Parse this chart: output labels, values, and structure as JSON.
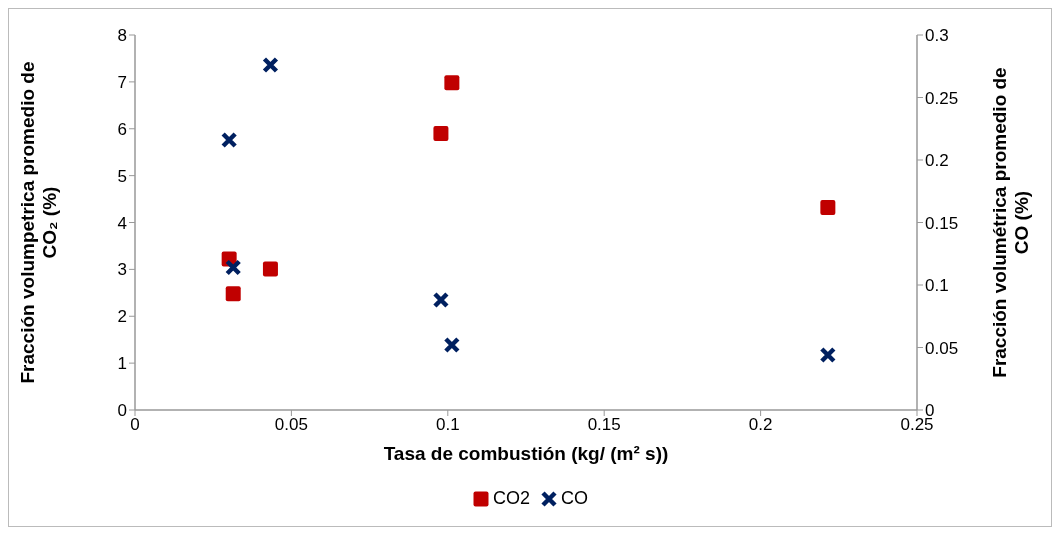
{
  "chart_data": {
    "type": "scatter",
    "xlabel": "Tasa de combustión (kg/ (m² s))",
    "ylabel": "Fracción volumpetrica promedio de CO₂ (%)",
    "y2label": "Fracción volumétrica promedio de CO (%)",
    "series": [
      {
        "name": "CO2",
        "color": "#c00000",
        "marker": "square",
        "x": [
          0.0301,
          0.0314,
          0.0433,
          0.0978,
          0.1013,
          0.2215
        ],
        "values": [
          3.22,
          2.48,
          3.01,
          5.9,
          6.98,
          4.32
        ]
      },
      {
        "name": "CO",
        "color": "#002060",
        "marker": "cross",
        "axis": "y2",
        "x": [
          0.0301,
          0.0433,
          0.0314,
          0.0978,
          0.1013,
          0.2215
        ],
        "values": [
          0.216,
          0.276,
          0.114,
          0.088,
          0.052,
          0.044
        ]
      }
    ],
    "xlim": [
      0,
      0.25
    ],
    "xticks": [
      0,
      0.05,
      0.1,
      0.15,
      0.2,
      0.25
    ],
    "ylim": [
      0,
      8
    ],
    "yticks": [
      0,
      1,
      2,
      3,
      4,
      5,
      6,
      7,
      8
    ],
    "y2lim": [
      0,
      0.3
    ],
    "y2ticks": [
      0,
      0.05,
      0.1,
      0.15,
      0.2,
      0.25,
      0.3
    ],
    "grid": false,
    "legend": "bottom"
  }
}
